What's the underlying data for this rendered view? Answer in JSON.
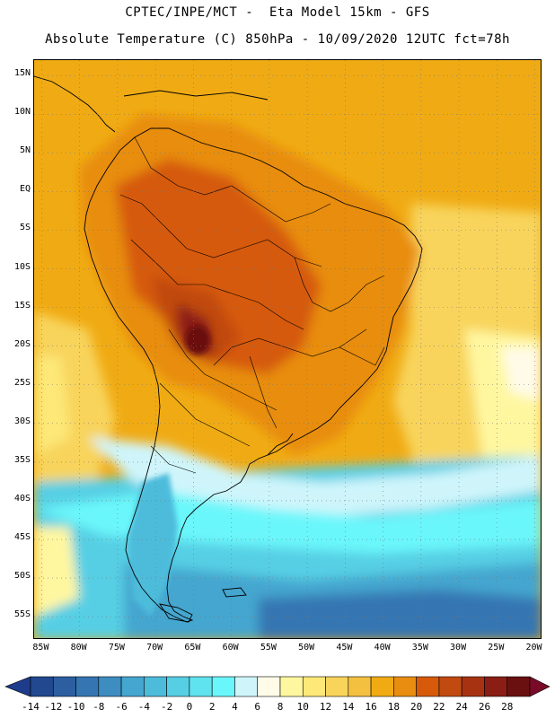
{
  "header": {
    "line1": "CPTEC/INPE/MCT -  Eta Model 15km - GFS",
    "line2": "Absolute Temperature (C) 850hPa - 10/09/2020 12UTC fct=78h"
  },
  "map": {
    "lat_labels": [
      "15N",
      "10N",
      "5N",
      "EQ",
      "5S",
      "10S",
      "15S",
      "20S",
      "25S",
      "30S",
      "35S",
      "40S",
      "45S",
      "50S",
      "55S"
    ],
    "lon_labels": [
      "85W",
      "80W",
      "75W",
      "70W",
      "65W",
      "60W",
      "55W",
      "50W",
      "45W",
      "40W",
      "35W",
      "30W",
      "25W",
      "20W"
    ],
    "lat_values": [
      15,
      10,
      5,
      0,
      -5,
      -10,
      -15,
      -20,
      -25,
      -30,
      -35,
      -40,
      -45,
      -50,
      -55
    ],
    "lon_values": [
      -85,
      -80,
      -75,
      -70,
      -65,
      -60,
      -55,
      -50,
      -45,
      -40,
      -35,
      -30,
      -25,
      -20
    ],
    "lat_range": [
      -58,
      17
    ],
    "lon_range": [
      -86,
      -19
    ],
    "gridlines": "dotted"
  },
  "colorbar": {
    "labels": [
      "-14",
      "-12",
      "-10",
      "-8",
      "-6",
      "-4",
      "-2",
      "0",
      "2",
      "4",
      "6",
      "8",
      "10",
      "12",
      "14",
      "16",
      "18",
      "20",
      "22",
      "24",
      "26",
      "28"
    ],
    "colors": [
      "#1e3c8c",
      "#22488f",
      "#2d5fa0",
      "#3576b2",
      "#3d8dc0",
      "#45a6cf",
      "#4dbcdb",
      "#56cfe4",
      "#5fe3ee",
      "#6af7fb",
      "#cff5fb",
      "#fffbe8",
      "#fff7a0",
      "#fde878",
      "#f8d45b",
      "#f3c040",
      "#f0ab14",
      "#e88d10",
      "#d65a0a",
      "#c14a10",
      "#a73212",
      "#8a1e14",
      "#6a1010",
      "#7a0a28"
    ],
    "units": "C"
  }
}
